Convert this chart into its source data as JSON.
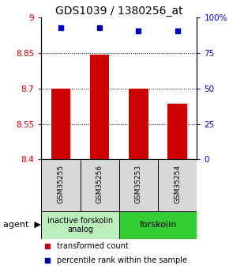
{
  "title": "GDS1039 / 1380256_at",
  "samples": [
    "GSM35255",
    "GSM35256",
    "GSM35253",
    "GSM35254"
  ],
  "bar_values": [
    8.7,
    8.845,
    8.7,
    8.635
  ],
  "percentile_values": [
    93,
    93,
    91,
    91
  ],
  "ylim_left": [
    8.4,
    9.0
  ],
  "ylim_right": [
    0,
    100
  ],
  "yticks_left": [
    8.4,
    8.55,
    8.7,
    8.85,
    9.0
  ],
  "yticks_right": [
    0,
    25,
    50,
    75,
    100
  ],
  "ytick_labels_left": [
    "8.4",
    "8.55",
    "8.7",
    "8.85",
    "9"
  ],
  "ytick_labels_right": [
    "0",
    "25",
    "50",
    "75",
    "100%"
  ],
  "hlines": [
    8.55,
    8.7,
    8.85
  ],
  "bar_color": "#cc0000",
  "dot_color": "#0000bb",
  "bar_width": 0.5,
  "group_light_green": "#bbeebb",
  "group_dark_green": "#33cc33",
  "groups": [
    {
      "label": "inactive forskolin\nanalog",
      "cols": [
        0,
        1
      ]
    },
    {
      "label": "forskolin",
      "cols": [
        2,
        3
      ]
    }
  ],
  "agent_label": "agent",
  "legend_red": "transformed count",
  "legend_blue": "percentile rank within the sample",
  "title_fontsize": 10,
  "tick_fontsize": 7.5,
  "sample_fontsize": 6.5,
  "group_fontsize": 7,
  "legend_fontsize": 7,
  "background_color": "#ffffff"
}
